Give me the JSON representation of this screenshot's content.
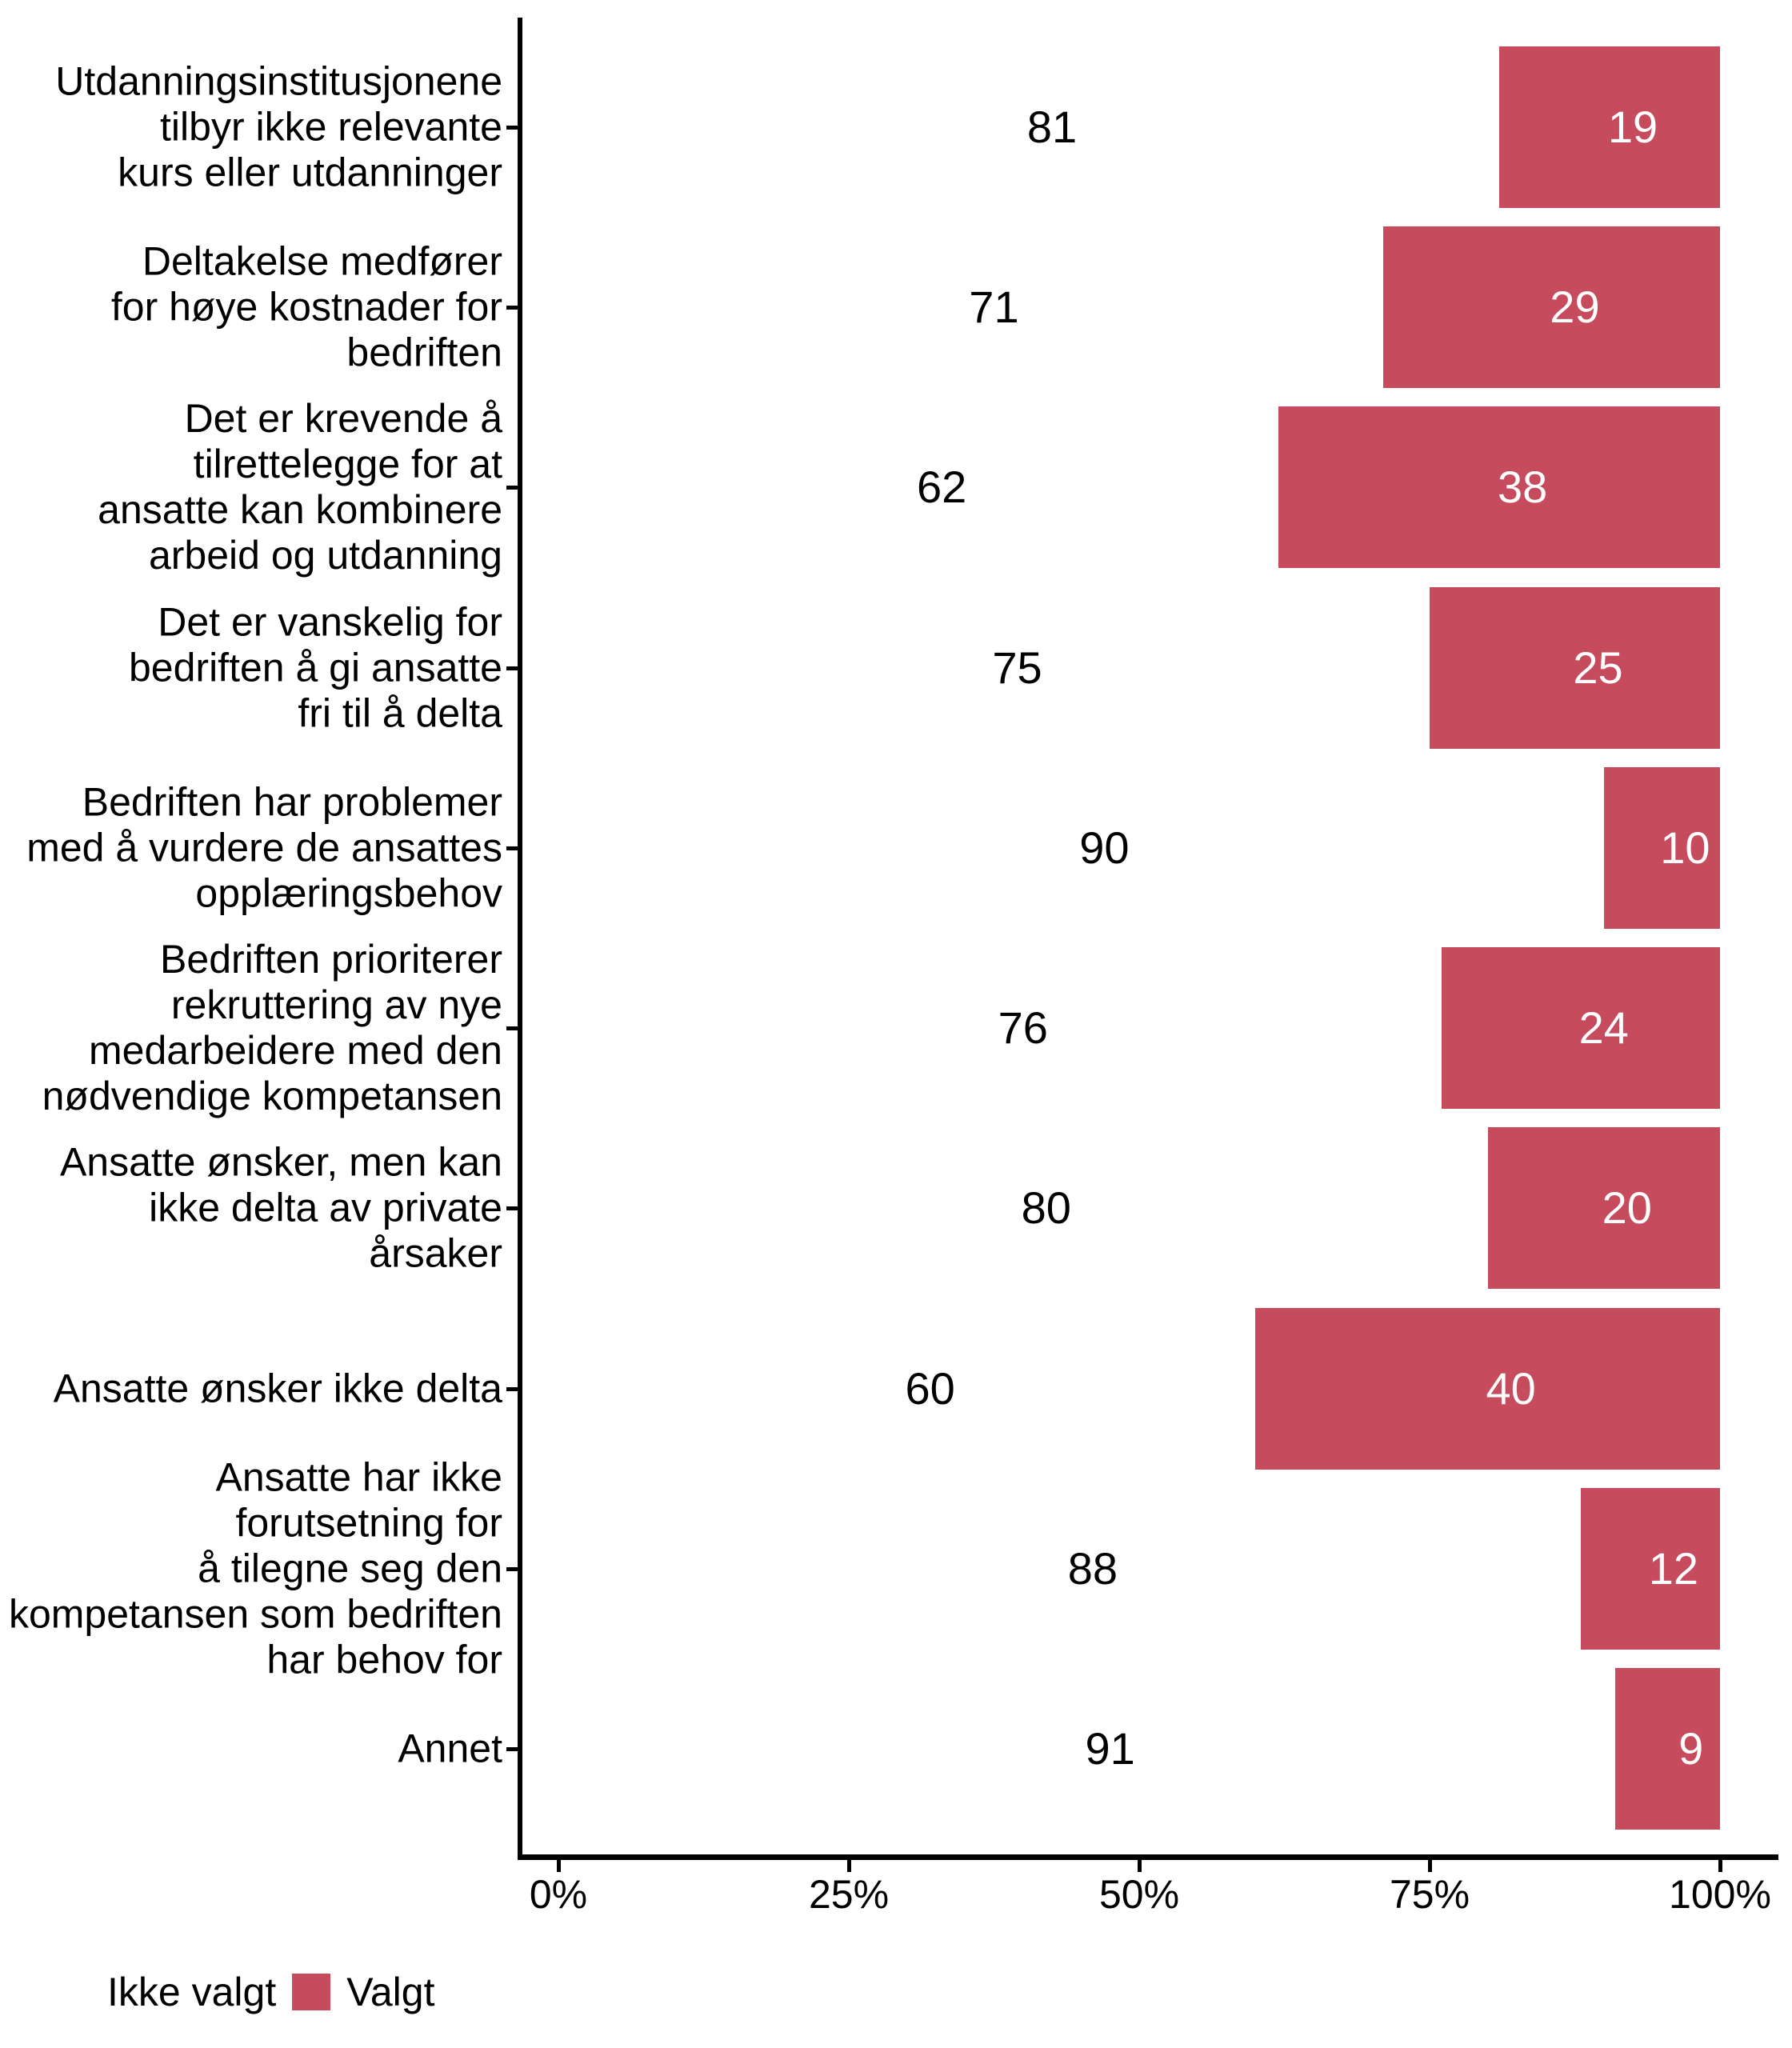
{
  "chart_data": {
    "type": "bar",
    "orientation": "horizontal",
    "stacked": true,
    "title": "",
    "xlabel": "",
    "ylabel": "",
    "grid": false,
    "categories": [
      "Utdanningsinstitusjonene\ntilbyr ikke relevante\nkurs eller utdanninger",
      "Deltakelse medfører\nfor høye kostnader for\nbedriften",
      "Det er krevende å\ntilrettelegge for at\nansatte kan kombinere\narbeid og utdanning",
      "Det er vanskelig for\nbedriften å gi ansatte\nfri til å delta",
      "Bedriften har problemer\nmed å vurdere de ansattes\nopplæringsbehov",
      "Bedriften prioriterer\nrekruttering av nye\nmedarbeidere med den\nnødvendige kompetansen",
      "Ansatte ønsker, men kan\nikke delta av private\nårsaker",
      "Ansatte ønsker ikke delta",
      "Ansatte har ikke\nforutsetning for\nå tilegne seg den\nkompetansen som bedriften\nhar behov for",
      "Annet"
    ],
    "series": [
      {
        "name": "Ikke valgt",
        "values": [
          81,
          71,
          62,
          75,
          90,
          76,
          80,
          60,
          88,
          91
        ]
      },
      {
        "name": "Valgt",
        "values": [
          19,
          29,
          38,
          25,
          10,
          24,
          20,
          40,
          12,
          9
        ]
      }
    ],
    "x_axis": {
      "range": [
        0,
        100
      ],
      "tick_values": [
        0,
        25,
        50,
        75,
        100
      ],
      "tick_labels": [
        "0%",
        "25%",
        "50%",
        "75%",
        "100%"
      ]
    },
    "legend": {
      "position": "bottom-left",
      "entries": [
        {
          "label": "Ikke valgt",
          "color": "#ffffff"
        },
        {
          "label": "Valgt",
          "color": "#C64B5C"
        }
      ]
    },
    "colors": {
      "valgt_fill": "#C64B5C",
      "ikke_valgt_fill": "#ffffff",
      "axis": "#000000",
      "text": "#000000",
      "value_text_on_bar": "#ffffff"
    }
  }
}
